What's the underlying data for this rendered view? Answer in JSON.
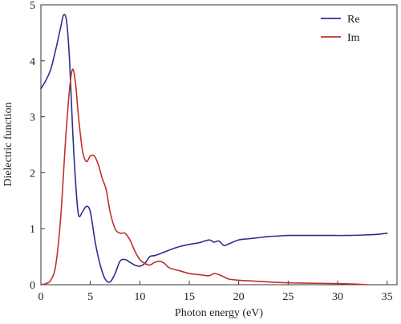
{
  "chart_data": {
    "type": "line",
    "xlabel": "Photon energy (eV)",
    "ylabel": "Dielectric function",
    "xlim": [
      0,
      36
    ],
    "ylim": [
      0,
      5
    ],
    "xticks": [
      0,
      5,
      10,
      15,
      20,
      25,
      30,
      35
    ],
    "yticks": [
      0,
      1,
      2,
      3,
      4,
      5
    ],
    "grid": false,
    "legend": "top-right",
    "series": [
      {
        "name": "Re",
        "color": "#2e2f8a",
        "x": [
          0,
          0.5,
          1,
          1.5,
          2,
          2.3,
          2.6,
          2.9,
          3.2,
          3.5,
          3.8,
          4.2,
          4.6,
          5.0,
          5.5,
          6.0,
          6.5,
          7.0,
          7.5,
          8.0,
          8.5,
          9.0,
          9.5,
          10.0,
          10.5,
          11.0,
          11.5,
          12.0,
          13.0,
          14.0,
          15.0,
          16.0,
          17.0,
          17.5,
          18.0,
          18.5,
          19.0,
          20.0,
          21.0,
          22.0,
          23.0,
          24.0,
          25.0,
          27.0,
          29.0,
          31.0,
          33.0,
          34.0,
          35.0
        ],
        "y": [
          3.5,
          3.65,
          3.85,
          4.2,
          4.6,
          4.82,
          4.7,
          4.0,
          2.8,
          1.85,
          1.25,
          1.3,
          1.4,
          1.3,
          0.75,
          0.35,
          0.1,
          0.05,
          0.2,
          0.42,
          0.45,
          0.4,
          0.35,
          0.33,
          0.38,
          0.5,
          0.52,
          0.55,
          0.62,
          0.68,
          0.72,
          0.75,
          0.8,
          0.76,
          0.78,
          0.7,
          0.73,
          0.8,
          0.82,
          0.84,
          0.86,
          0.87,
          0.88,
          0.88,
          0.88,
          0.88,
          0.89,
          0.9,
          0.92
        ]
      },
      {
        "name": "Im",
        "color": "#c0302d",
        "x": [
          0,
          0.5,
          1.0,
          1.5,
          2.0,
          2.5,
          2.9,
          3.2,
          3.5,
          3.8,
          4.2,
          4.6,
          5.0,
          5.4,
          5.8,
          6.2,
          6.6,
          7.0,
          7.5,
          8.0,
          8.5,
          9.0,
          9.5,
          10.0,
          10.5,
          11.0,
          11.5,
          12.0,
          12.5,
          13.0,
          14.0,
          15.0,
          16.0,
          17.0,
          17.5,
          18.0,
          18.5,
          19.0,
          20.0,
          21.0,
          22.0,
          24.0,
          26.0,
          28.0,
          30.0,
          32.0,
          33.0
        ],
        "y": [
          0,
          0.02,
          0.08,
          0.35,
          1.2,
          2.6,
          3.5,
          3.85,
          3.6,
          3.0,
          2.4,
          2.2,
          2.3,
          2.3,
          2.15,
          1.9,
          1.7,
          1.3,
          1.0,
          0.92,
          0.92,
          0.8,
          0.6,
          0.45,
          0.38,
          0.35,
          0.4,
          0.42,
          0.38,
          0.3,
          0.25,
          0.2,
          0.18,
          0.16,
          0.2,
          0.18,
          0.14,
          0.1,
          0.08,
          0.07,
          0.06,
          0.04,
          0.03,
          0.025,
          0.02,
          0.01,
          0.0
        ]
      }
    ]
  }
}
